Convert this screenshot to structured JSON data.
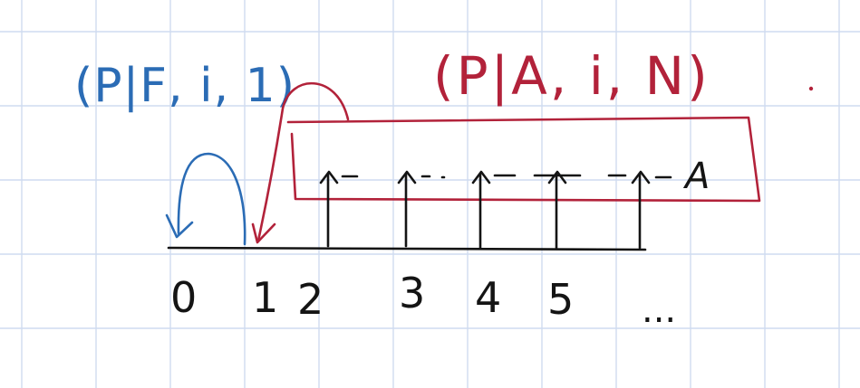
{
  "diagram": {
    "labels": {
      "blue_annotation": "(P|F, i, 1)",
      "red_annotation": "(P|A, i, N)",
      "arrow_series": "A",
      "ellipsis": "..."
    },
    "ticks": [
      "0",
      "1",
      "2",
      "3",
      "4",
      "5"
    ],
    "colors": {
      "grid": "#cfdcf0",
      "ink": "#141414",
      "blue": "#2b6cb5",
      "red": "#b2223a"
    }
  }
}
